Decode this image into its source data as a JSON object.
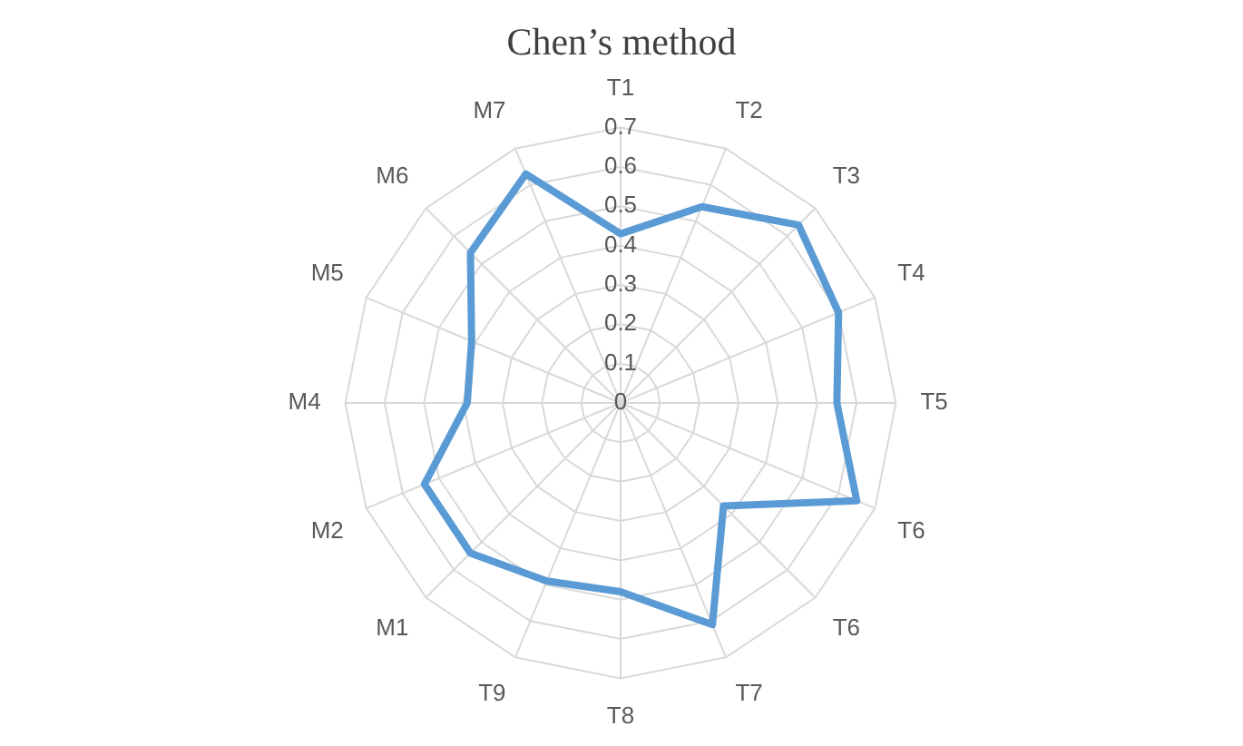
{
  "chart_data": {
    "type": "radar",
    "title": "Chen’s method",
    "categories": [
      "T1",
      "T2",
      "T3",
      "T4",
      "T5",
      "T6",
      "T6",
      "T7",
      "T8",
      "T9",
      "M1",
      "M2",
      "M4",
      "M5",
      "M6",
      "M7"
    ],
    "series": [
      {
        "color": "#5b9bd5",
        "values": [
          0.43,
          0.54,
          0.64,
          0.6,
          0.55,
          0.65,
          0.37,
          0.61,
          0.48,
          0.49,
          0.54,
          0.54,
          0.39,
          0.41,
          0.54,
          0.63
        ]
      }
    ],
    "ylim": [
      0,
      0.7
    ],
    "yticks": [
      0,
      0.1,
      0.2,
      0.3,
      0.4,
      0.5,
      0.6,
      0.7
    ],
    "grid": true,
    "legend": false,
    "marker": "none"
  }
}
